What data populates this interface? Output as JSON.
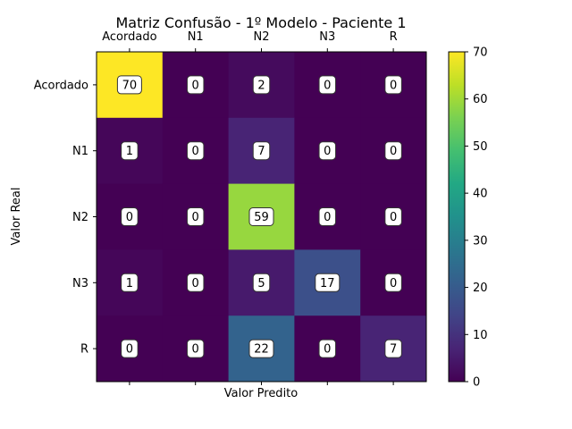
{
  "chart_data": {
    "type": "heatmap",
    "title": "Matriz Confusão - 1º Modelo - Paciente 1",
    "xlabel": "Valor Predito",
    "ylabel": "Valor Real",
    "x_categories": [
      "Acordado",
      "N1",
      "N2",
      "N3",
      "R"
    ],
    "y_categories": [
      "Acordado",
      "N1",
      "N2",
      "N3",
      "R"
    ],
    "values": [
      [
        70,
        0,
        2,
        0,
        0
      ],
      [
        1,
        0,
        7,
        0,
        0
      ],
      [
        0,
        0,
        59,
        0,
        0
      ],
      [
        1,
        0,
        5,
        17,
        0
      ],
      [
        0,
        0,
        22,
        0,
        7
      ]
    ],
    "colormap": "viridis",
    "colorbar": {
      "min": 0,
      "max": 70,
      "ticks": [
        0,
        10,
        20,
        30,
        40,
        50,
        60,
        70
      ]
    },
    "x_ticks_position": "top",
    "grid": false
  }
}
